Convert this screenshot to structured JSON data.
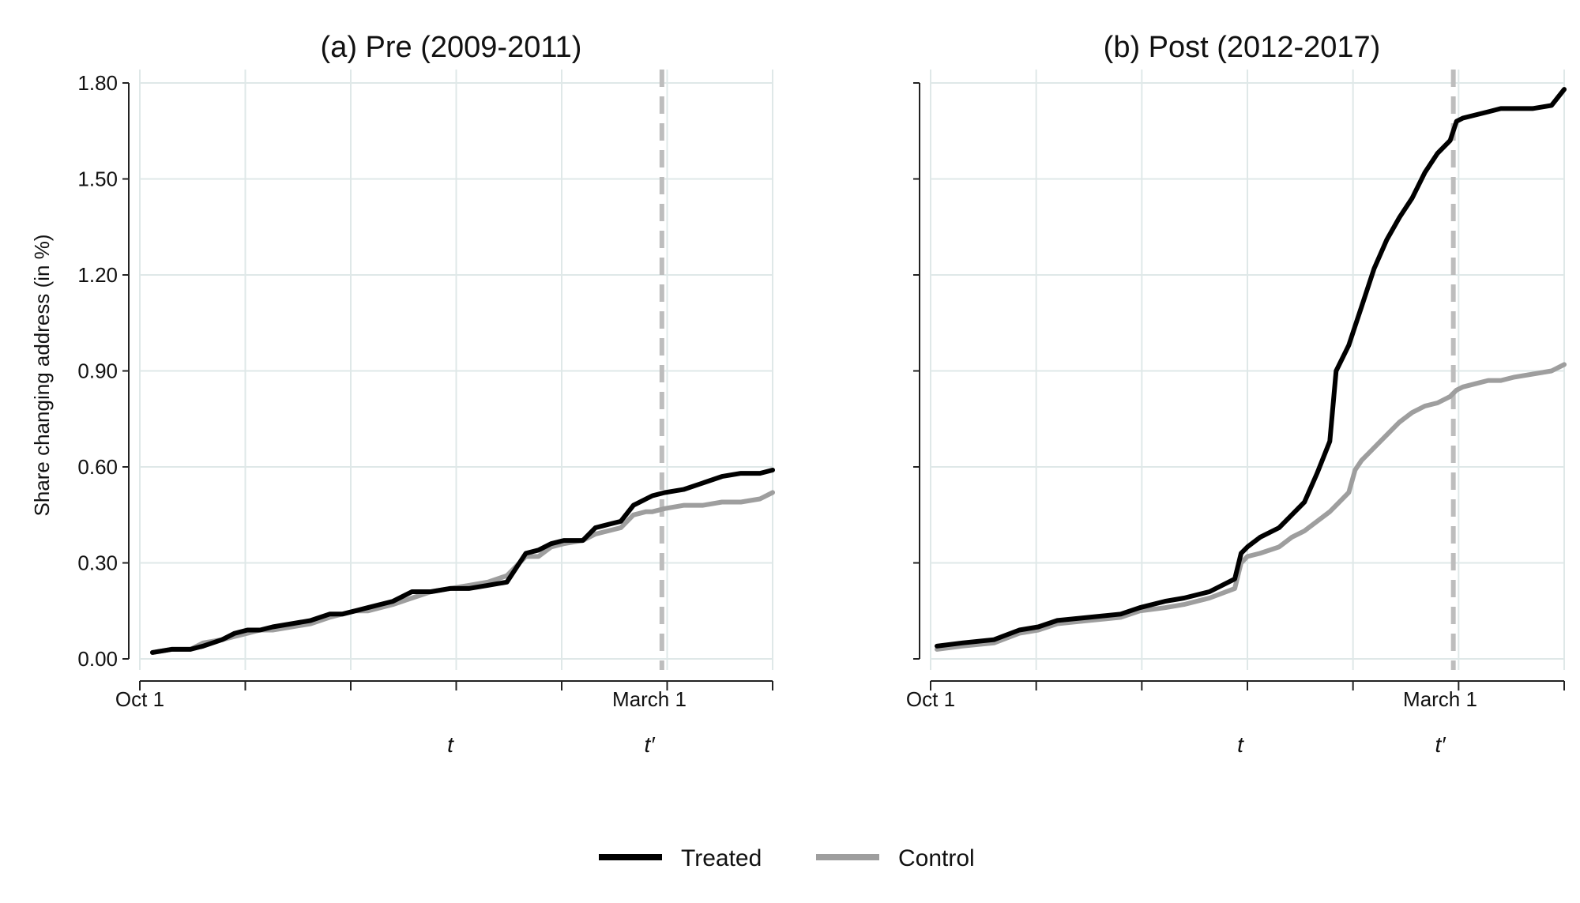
{
  "chart_data": [
    {
      "type": "line",
      "title": "(a) Pre (2009-2011)",
      "ylabel": "Share changing address (in %)",
      "xlabel": "",
      "ylim": [
        0,
        1.8
      ],
      "y_ticks": [
        "0.00",
        "0.30",
        "0.60",
        "0.90",
        "1.20",
        "1.50",
        "1.80"
      ],
      "x_tick_labels": [
        "Oct 1",
        "March 1"
      ],
      "x_markers": [
        "t",
        "t′"
      ],
      "vline_label": "t′",
      "series": [
        {
          "name": "Treated",
          "color": "#000000",
          "x": [
            0.02,
            0.05,
            0.08,
            0.1,
            0.13,
            0.15,
            0.17,
            0.19,
            0.21,
            0.24,
            0.27,
            0.3,
            0.32,
            0.34,
            0.36,
            0.38,
            0.4,
            0.43,
            0.46,
            0.49,
            0.52,
            0.55,
            0.58,
            0.61,
            0.63,
            0.65,
            0.67,
            0.7,
            0.72,
            0.74,
            0.76,
            0.78,
            0.8,
            0.81,
            0.83,
            0.86,
            0.89,
            0.92,
            0.95,
            0.98,
            1.0
          ],
          "y": [
            0.02,
            0.03,
            0.03,
            0.04,
            0.06,
            0.08,
            0.09,
            0.09,
            0.1,
            0.11,
            0.12,
            0.14,
            0.14,
            0.15,
            0.16,
            0.17,
            0.18,
            0.21,
            0.21,
            0.22,
            0.22,
            0.23,
            0.24,
            0.33,
            0.34,
            0.36,
            0.37,
            0.37,
            0.41,
            0.42,
            0.43,
            0.48,
            0.5,
            0.51,
            0.52,
            0.53,
            0.55,
            0.57,
            0.58,
            0.58,
            0.59
          ]
        },
        {
          "name": "Control",
          "color": "#9e9e9e",
          "x": [
            0.02,
            0.05,
            0.08,
            0.1,
            0.13,
            0.15,
            0.17,
            0.19,
            0.21,
            0.24,
            0.27,
            0.3,
            0.32,
            0.34,
            0.36,
            0.38,
            0.4,
            0.43,
            0.46,
            0.49,
            0.52,
            0.55,
            0.58,
            0.61,
            0.63,
            0.65,
            0.67,
            0.7,
            0.72,
            0.74,
            0.76,
            0.78,
            0.8,
            0.81,
            0.83,
            0.86,
            0.89,
            0.92,
            0.95,
            0.98,
            1.0
          ],
          "y": [
            0.02,
            0.03,
            0.03,
            0.05,
            0.06,
            0.07,
            0.08,
            0.09,
            0.09,
            0.1,
            0.11,
            0.13,
            0.14,
            0.15,
            0.15,
            0.16,
            0.17,
            0.19,
            0.21,
            0.22,
            0.23,
            0.24,
            0.26,
            0.32,
            0.32,
            0.35,
            0.36,
            0.37,
            0.39,
            0.4,
            0.41,
            0.45,
            0.46,
            0.46,
            0.47,
            0.48,
            0.48,
            0.49,
            0.49,
            0.5,
            0.52
          ]
        }
      ]
    },
    {
      "type": "line",
      "title": "(b) Post (2012-2017)",
      "ylabel": "",
      "xlabel": "",
      "ylim": [
        0,
        1.8
      ],
      "y_ticks": [],
      "x_tick_labels": [
        "Oct 1",
        "March 1"
      ],
      "x_markers": [
        "t",
        "t′"
      ],
      "vline_label": "t′",
      "series": [
        {
          "name": "Treated",
          "color": "#000000",
          "x": [
            0.01,
            0.05,
            0.1,
            0.14,
            0.17,
            0.2,
            0.25,
            0.3,
            0.33,
            0.37,
            0.4,
            0.44,
            0.48,
            0.49,
            0.5,
            0.52,
            0.55,
            0.57,
            0.59,
            0.61,
            0.63,
            0.64,
            0.66,
            0.67,
            0.68,
            0.69,
            0.7,
            0.72,
            0.74,
            0.76,
            0.78,
            0.8,
            0.82,
            0.83,
            0.84,
            0.86,
            0.88,
            0.9,
            0.92,
            0.95,
            0.98,
            1.0
          ],
          "y": [
            0.04,
            0.05,
            0.06,
            0.09,
            0.1,
            0.12,
            0.13,
            0.14,
            0.16,
            0.18,
            0.19,
            0.21,
            0.25,
            0.33,
            0.35,
            0.38,
            0.41,
            0.45,
            0.49,
            0.58,
            0.68,
            0.9,
            0.98,
            1.04,
            1.1,
            1.16,
            1.22,
            1.31,
            1.38,
            1.44,
            1.52,
            1.58,
            1.62,
            1.68,
            1.69,
            1.7,
            1.71,
            1.72,
            1.72,
            1.72,
            1.73,
            1.78
          ]
        },
        {
          "name": "Control",
          "color": "#9e9e9e",
          "x": [
            0.01,
            0.05,
            0.1,
            0.14,
            0.17,
            0.2,
            0.25,
            0.3,
            0.33,
            0.37,
            0.4,
            0.44,
            0.48,
            0.49,
            0.5,
            0.52,
            0.55,
            0.57,
            0.59,
            0.61,
            0.63,
            0.64,
            0.66,
            0.67,
            0.68,
            0.69,
            0.7,
            0.72,
            0.74,
            0.76,
            0.78,
            0.8,
            0.82,
            0.83,
            0.84,
            0.86,
            0.88,
            0.9,
            0.92,
            0.95,
            0.98,
            1.0
          ],
          "y": [
            0.03,
            0.04,
            0.05,
            0.08,
            0.09,
            0.11,
            0.12,
            0.13,
            0.15,
            0.16,
            0.17,
            0.19,
            0.22,
            0.3,
            0.32,
            0.33,
            0.35,
            0.38,
            0.4,
            0.43,
            0.46,
            0.48,
            0.52,
            0.59,
            0.62,
            0.64,
            0.66,
            0.7,
            0.74,
            0.77,
            0.79,
            0.8,
            0.82,
            0.84,
            0.85,
            0.86,
            0.87,
            0.87,
            0.88,
            0.89,
            0.9,
            0.92
          ]
        }
      ]
    }
  ],
  "legend": [
    {
      "label": "Treated",
      "color": "#000000"
    },
    {
      "label": "Control",
      "color": "#9e9e9e"
    }
  ]
}
